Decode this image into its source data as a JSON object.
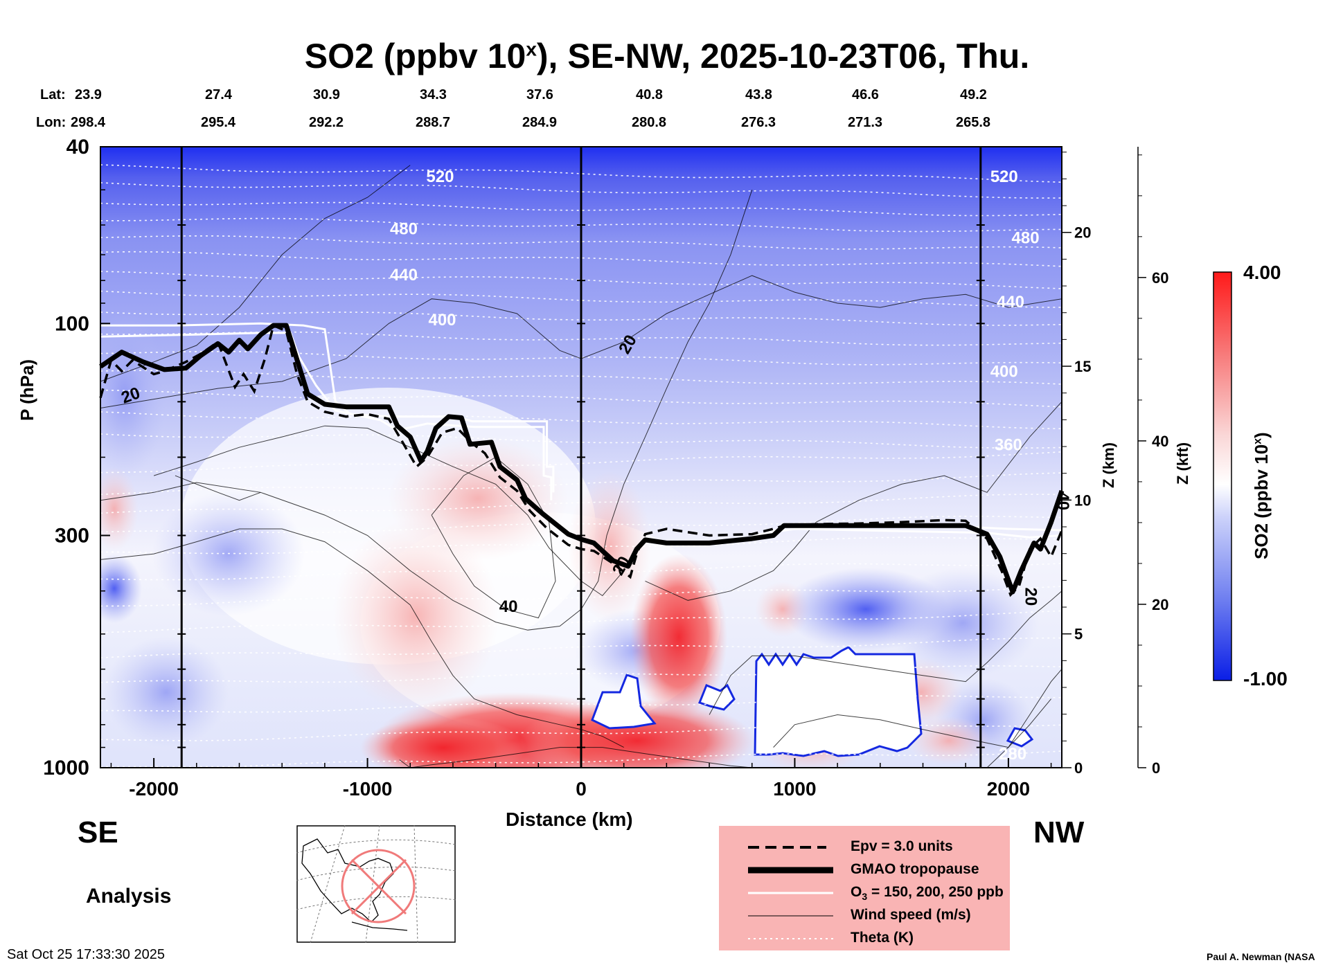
{
  "title": {
    "prefix": "SO2 (ppbv 10",
    "superscript": "x",
    "suffix": "), SE-NW, 2025-10-23T06, Thu."
  },
  "lat_row": {
    "label": "Lat:",
    "values": [
      "23.9",
      "27.4",
      "30.9",
      "34.3",
      "37.6",
      "40.8",
      "43.8",
      "46.6",
      "49.2"
    ]
  },
  "lon_row": {
    "label": "Lon:",
    "values": [
      "298.4",
      "295.4",
      "292.2",
      "288.7",
      "284.9",
      "280.8",
      "276.3",
      "271.3",
      "265.8"
    ]
  },
  "direction": {
    "left": "SE",
    "right": "NW"
  },
  "mode_label": "Analysis",
  "timestamp": "Sat Oct 25 17:33:30 2025",
  "credit": "Paul A. Newman (NASA",
  "chart_data": {
    "type": "heatmap",
    "xlabel": "Distance (km)",
    "ylabel": "P (hPa)",
    "xlim": [
      -2250,
      2250
    ],
    "ylim": [
      1000,
      40
    ],
    "yscale": "log",
    "x_ticks": [
      -2000,
      -1000,
      0,
      1000,
      2000
    ],
    "y_ticks": [
      40,
      100,
      300,
      1000
    ],
    "z_km": {
      "label": "Z (km)",
      "ticks": [
        0,
        5,
        10,
        15,
        20
      ]
    },
    "z_kft": {
      "label": "Z (kft)",
      "ticks": [
        0,
        20,
        40,
        60
      ]
    },
    "colorbar": {
      "label_prefix": "SO2 (ppbv 10",
      "label_superscript": "x",
      "label_suffix": ")",
      "min": -1.0,
      "max": 4.0,
      "min_label": "-1.00",
      "max_label": "4.00",
      "low_color": "#0a1ee6",
      "mid_color": "#ffffff",
      "high_color": "#ff1a1a"
    },
    "vertical_markers_km": [
      -1870,
      0,
      1870
    ],
    "theta_labels": [
      {
        "x": -660,
        "p": 48,
        "text": "520"
      },
      {
        "x": 1980,
        "p": 48,
        "text": "520"
      },
      {
        "x": -830,
        "p": 63,
        "text": "480"
      },
      {
        "x": 2080,
        "p": 66,
        "text": "480"
      },
      {
        "x": -830,
        "p": 80,
        "text": "440"
      },
      {
        "x": 2010,
        "p": 92,
        "text": "440"
      },
      {
        "x": -650,
        "p": 101,
        "text": "400"
      },
      {
        "x": 1980,
        "p": 132,
        "text": "400"
      },
      {
        "x": 2000,
        "p": 193,
        "text": "360"
      },
      {
        "x": 2020,
        "p": 958,
        "text": "280"
      }
    ],
    "wind_labels": [
      {
        "x": 240,
        "p": 113,
        "text": "20",
        "rot": -60
      },
      {
        "x": -2100,
        "p": 149,
        "text": "20",
        "rot": -20
      },
      {
        "x": -340,
        "p": 446,
        "text": "40",
        "rot": 0
      },
      {
        "x": 2230,
        "p": 251,
        "text": "40",
        "rot": 90
      },
      {
        "x": 210,
        "p": 356,
        "text": "20",
        "rot": -60
      },
      {
        "x": 2080,
        "p": 412,
        "text": "20",
        "rot": 90
      }
    ],
    "tropopause": [
      [
        -2250,
        125
      ],
      [
        -2150,
        116
      ],
      [
        -2050,
        122
      ],
      [
        -1950,
        127
      ],
      [
        -1850,
        126
      ],
      [
        -1780,
        118
      ],
      [
        -1700,
        111
      ],
      [
        -1650,
        116
      ],
      [
        -1600,
        109
      ],
      [
        -1560,
        114
      ],
      [
        -1500,
        106
      ],
      [
        -1440,
        101
      ],
      [
        -1380,
        101
      ],
      [
        -1320,
        125
      ],
      [
        -1280,
        144
      ],
      [
        -1200,
        152
      ],
      [
        -1100,
        154
      ],
      [
        -1000,
        154
      ],
      [
        -900,
        154
      ],
      [
        -860,
        170
      ],
      [
        -800,
        180
      ],
      [
        -750,
        204
      ],
      [
        -720,
        194
      ],
      [
        -680,
        172
      ],
      [
        -620,
        162
      ],
      [
        -560,
        163
      ],
      [
        -520,
        187
      ],
      [
        -470,
        186
      ],
      [
        -420,
        185
      ],
      [
        -380,
        210
      ],
      [
        -300,
        225
      ],
      [
        -260,
        248
      ],
      [
        -180,
        268
      ],
      [
        -60,
        298
      ],
      [
        0,
        306
      ],
      [
        60,
        312
      ],
      [
        150,
        342
      ],
      [
        220,
        352
      ],
      [
        260,
        322
      ],
      [
        300,
        307
      ],
      [
        400,
        312
      ],
      [
        600,
        312
      ],
      [
        800,
        305
      ],
      [
        900,
        300
      ],
      [
        950,
        285
      ],
      [
        1100,
        285
      ],
      [
        1300,
        285
      ],
      [
        1500,
        285
      ],
      [
        1700,
        285
      ],
      [
        1800,
        285
      ],
      [
        1900,
        298
      ],
      [
        1960,
        335
      ],
      [
        2020,
        402
      ],
      [
        2060,
        360
      ],
      [
        2120,
        312
      ],
      [
        2150,
        322
      ],
      [
        2200,
        280
      ],
      [
        2250,
        238
      ]
    ],
    "epv": [
      [
        -2250,
        147
      ],
      [
        -2200,
        121
      ],
      [
        -2150,
        128
      ],
      [
        -2100,
        121
      ],
      [
        -2000,
        130
      ],
      [
        -1950,
        128
      ],
      [
        -1850,
        122
      ],
      [
        -1780,
        117
      ],
      [
        -1700,
        110
      ],
      [
        -1620,
        139
      ],
      [
        -1580,
        130
      ],
      [
        -1530,
        142
      ],
      [
        -1480,
        120
      ],
      [
        -1440,
        101
      ],
      [
        -1380,
        104
      ],
      [
        -1330,
        130
      ],
      [
        -1280,
        150
      ],
      [
        -1200,
        158
      ],
      [
        -1100,
        162
      ],
      [
        -1000,
        160
      ],
      [
        -900,
        164
      ],
      [
        -850,
        180
      ],
      [
        -770,
        210
      ],
      [
        -720,
        200
      ],
      [
        -650,
        176
      ],
      [
        -580,
        172
      ],
      [
        -510,
        186
      ],
      [
        -450,
        196
      ],
      [
        -380,
        222
      ],
      [
        -300,
        238
      ],
      [
        -240,
        264
      ],
      [
        -160,
        289
      ],
      [
        -60,
        315
      ],
      [
        0,
        322
      ],
      [
        60,
        325
      ],
      [
        150,
        347
      ],
      [
        230,
        372
      ],
      [
        260,
        330
      ],
      [
        300,
        298
      ],
      [
        400,
        290
      ],
      [
        600,
        300
      ],
      [
        800,
        298
      ],
      [
        900,
        290
      ],
      [
        950,
        285
      ],
      [
        1100,
        283
      ],
      [
        1300,
        282
      ],
      [
        1500,
        280
      ],
      [
        1700,
        277
      ],
      [
        1800,
        278
      ],
      [
        1900,
        305
      ],
      [
        1970,
        362
      ],
      [
        2010,
        408
      ],
      [
        2050,
        390
      ],
      [
        2100,
        322
      ],
      [
        2150,
        305
      ],
      [
        2200,
        335
      ],
      [
        2250,
        292
      ]
    ],
    "ozone_contours": [
      [
        [
          -2250,
          101
        ],
        [
          -1900,
          101
        ],
        [
          -1500,
          100
        ],
        [
          -1300,
          101
        ],
        [
          -1200,
          103
        ],
        [
          -1150,
          150
        ],
        [
          -1080,
          160
        ],
        [
          -900,
          162
        ],
        [
          -720,
          162
        ],
        [
          -590,
          162
        ],
        [
          -510,
          166
        ],
        [
          -160,
          166
        ],
        [
          -160,
          210
        ],
        [
          -130,
          210
        ],
        [
          -130,
          240
        ]
      ],
      [
        [
          -2250,
          107
        ],
        [
          -1850,
          106
        ],
        [
          -1500,
          105
        ],
        [
          -1360,
          105
        ],
        [
          -1320,
          119
        ],
        [
          -1240,
          138
        ],
        [
          -1150,
          157
        ],
        [
          -940,
          165
        ],
        [
          -860,
          174
        ],
        [
          -720,
          168
        ],
        [
          -500,
          171
        ],
        [
          -175,
          171
        ],
        [
          -175,
          220
        ],
        [
          -140,
          222
        ],
        [
          -140,
          250
        ]
      ],
      [
        [
          800,
          300
        ],
        [
          1000,
          290
        ],
        [
          1300,
          292
        ],
        [
          1600,
          294
        ],
        [
          1900,
          296
        ],
        [
          2100,
          303
        ],
        [
          2250,
          300
        ]
      ],
      [
        [
          870,
          293
        ],
        [
          1200,
          286
        ],
        [
          1500,
          285
        ],
        [
          1800,
          287
        ],
        [
          2000,
          290
        ],
        [
          2250,
          292
        ]
      ]
    ]
  }
}
